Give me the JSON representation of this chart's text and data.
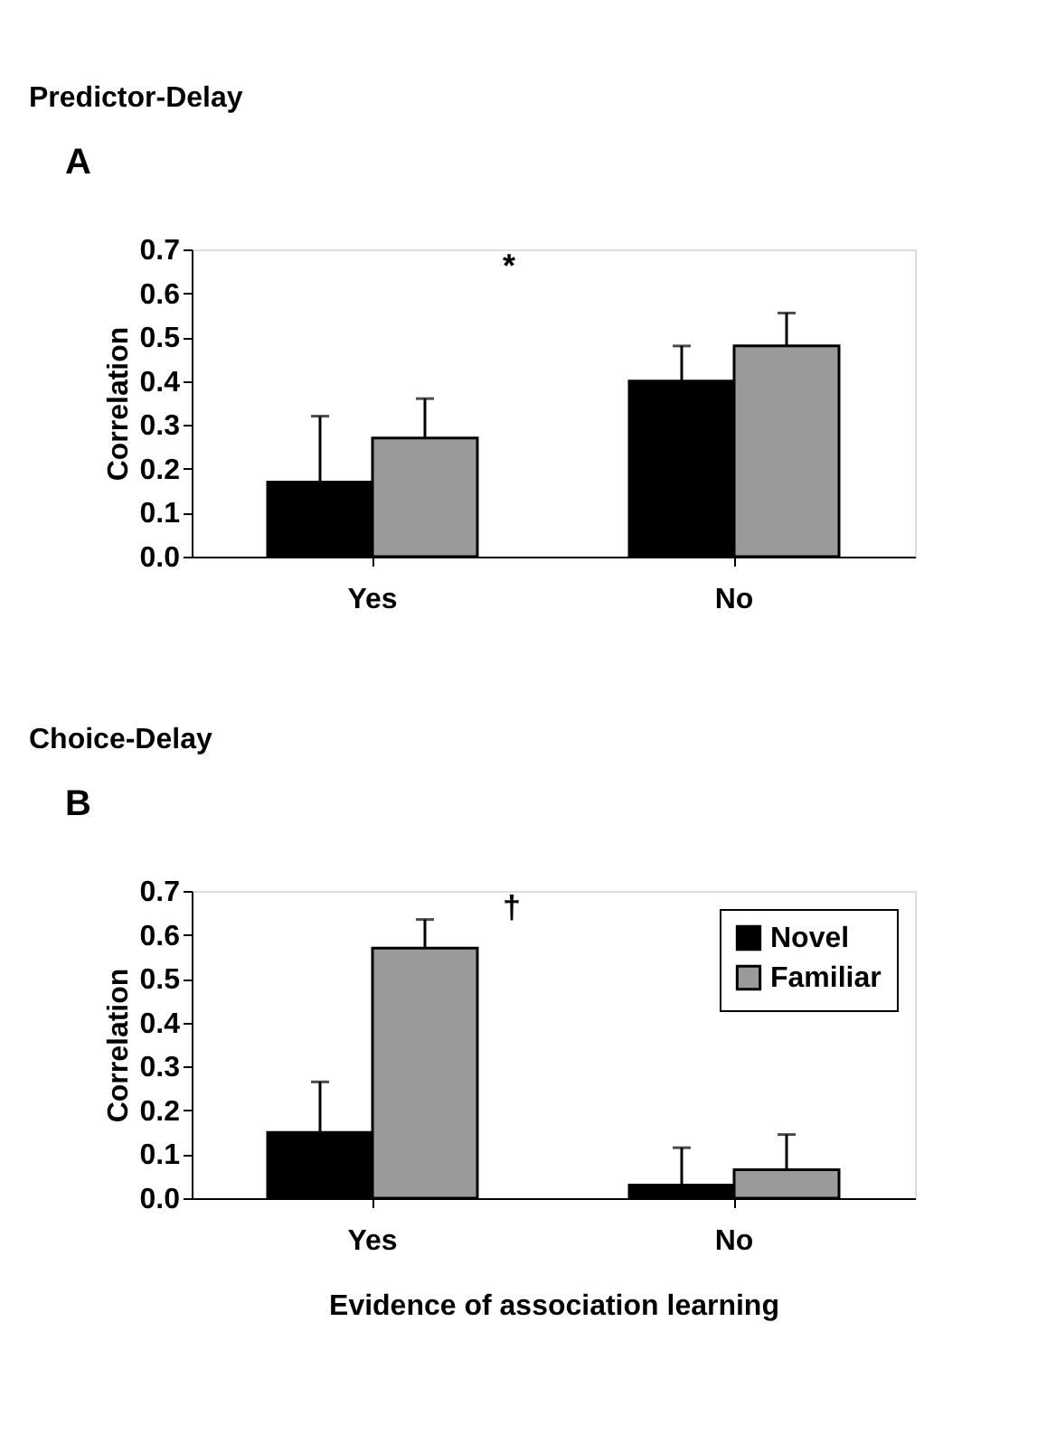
{
  "chart_data": [
    {
      "type": "bar",
      "title": "Predictor-Delay",
      "ylabel": "Correlation",
      "categories": [
        "Yes",
        "No"
      ],
      "annotations": [
        "A",
        "*"
      ],
      "series": [
        {
          "color": "#000000",
          "values": [
            0.17,
            0.4
          ],
          "errors": [
            [
              0.17,
              0.32
            ],
            [
              0.4,
              0.48
            ]
          ]
        },
        {
          "color": "#9a9a9a",
          "values": [
            0.27,
            0.48
          ],
          "errors": [
            [
              0.27,
              0.36
            ],
            [
              0.48,
              0.555
            ]
          ]
        }
      ],
      "ylim": [
        0,
        0.7
      ],
      "yticks": [
        "0.0",
        0.1,
        0.2,
        0.3,
        0.4,
        0.5,
        0.6,
        0.7
      ],
      "legend": false,
      "grid": false
    },
    {
      "type": "bar",
      "title": "Choice-Delay",
      "ylabel": "Correlation",
      "xlabel": "Evidence of association learning",
      "categories": [
        "Yes",
        "No"
      ],
      "annotations": [
        "B",
        "†"
      ],
      "series": [
        {
          "name": "Novel",
          "color": "#000000",
          "values": [
            0.15,
            0.03
          ],
          "errors": [
            [
              0.15,
              0.265
            ],
            [
              0.03,
              0.115
            ]
          ]
        },
        {
          "name": "Familiar",
          "color": "#9a9a9a",
          "values": [
            0.57,
            0.065
          ],
          "errors": [
            [
              0.57,
              0.635
            ],
            [
              0.065,
              0.145
            ]
          ]
        }
      ],
      "ylim": [
        0,
        0.7
      ],
      "yticks": [
        "0.0",
        0.1,
        0.2,
        0.3,
        0.4,
        0.5,
        0.6,
        0.7
      ],
      "legend": "top right",
      "grid": false
    }
  ]
}
